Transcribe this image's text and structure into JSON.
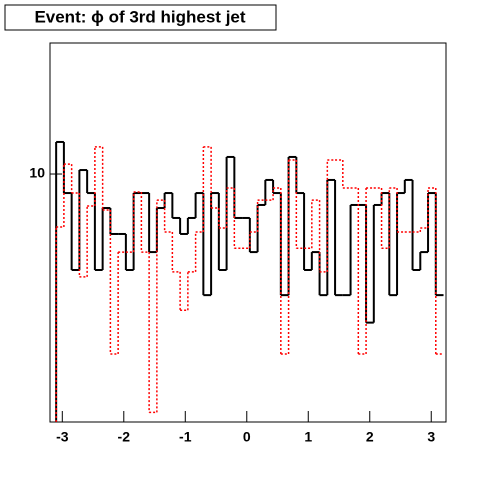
{
  "chart_data": {
    "type": "histogram",
    "title": "Event: ϕ of 3rd highest jet",
    "bins": [
      -3.1,
      -2.974,
      -2.848,
      -2.722,
      -2.596,
      -2.47,
      -2.344,
      -2.218,
      -2.092,
      -1.966,
      -1.84,
      -1.714,
      -1.588,
      -1.462,
      -1.336,
      -1.21,
      -1.084,
      -0.958,
      -0.832,
      -0.706,
      -0.58,
      -0.454,
      -0.328,
      -0.202,
      -0.076,
      0.05,
      0.176,
      0.302,
      0.428,
      0.554,
      0.68,
      0.806,
      0.932,
      1.058,
      1.184,
      1.31,
      1.436,
      1.562,
      1.688,
      1.814,
      1.94,
      2.066,
      2.192,
      2.318,
      2.444,
      2.57,
      2.696,
      2.822,
      2.948,
      3.074,
      3.2
    ],
    "series": [
      {
        "color": "#000000",
        "style": "solid",
        "values": [
          11.92,
          9.01,
          5.91,
          10.22,
          9.01,
          5.91,
          8.3,
          7.2,
          7.2,
          5.91,
          9.01,
          9.01,
          6.52,
          8.3,
          9.01,
          7.86,
          7.2,
          7.86,
          9.01,
          5.15,
          9.01,
          5.91,
          10.98,
          7.86,
          7.86,
          6.52,
          8.44,
          9.68,
          9.01,
          5.15,
          10.98,
          9.01,
          5.91,
          6.52,
          5.15,
          9.68,
          5.15,
          5.15,
          8.44,
          8.44,
          4.43,
          8.44,
          9.01,
          5.15,
          9.01,
          9.68,
          5.91,
          6.52,
          9.01,
          5.15
        ]
      },
      {
        "color": "#ff0000",
        "style": "dotted",
        "values": [
          7.48,
          10.56,
          9.01,
          5.69,
          8.39,
          11.6,
          8.21,
          3.73,
          6.52,
          6.52,
          9.06,
          6.52,
          2.71,
          8.67,
          7.28,
          5.85,
          4.74,
          5.85,
          7.28,
          11.6,
          8.3,
          7.44,
          9.26,
          6.66,
          6.66,
          7.28,
          8.67,
          8.67,
          9.26,
          3.73,
          10.8,
          6.66,
          6.66,
          8.67,
          5.85,
          10.8,
          10.8,
          9.26,
          9.26,
          3.73,
          9.26,
          9.26,
          6.66,
          9.26,
          7.28,
          7.28,
          7.28,
          7.44,
          9.26,
          3.73
        ]
      }
    ],
    "xlim": [
      -3.2,
      3.24
    ],
    "xticks": [
      -3,
      -2,
      -1,
      0,
      1,
      2,
      3
    ],
    "ylim": [
      2.57,
      20.5
    ],
    "yticks": [
      10
    ],
    "log_y": true
  }
}
